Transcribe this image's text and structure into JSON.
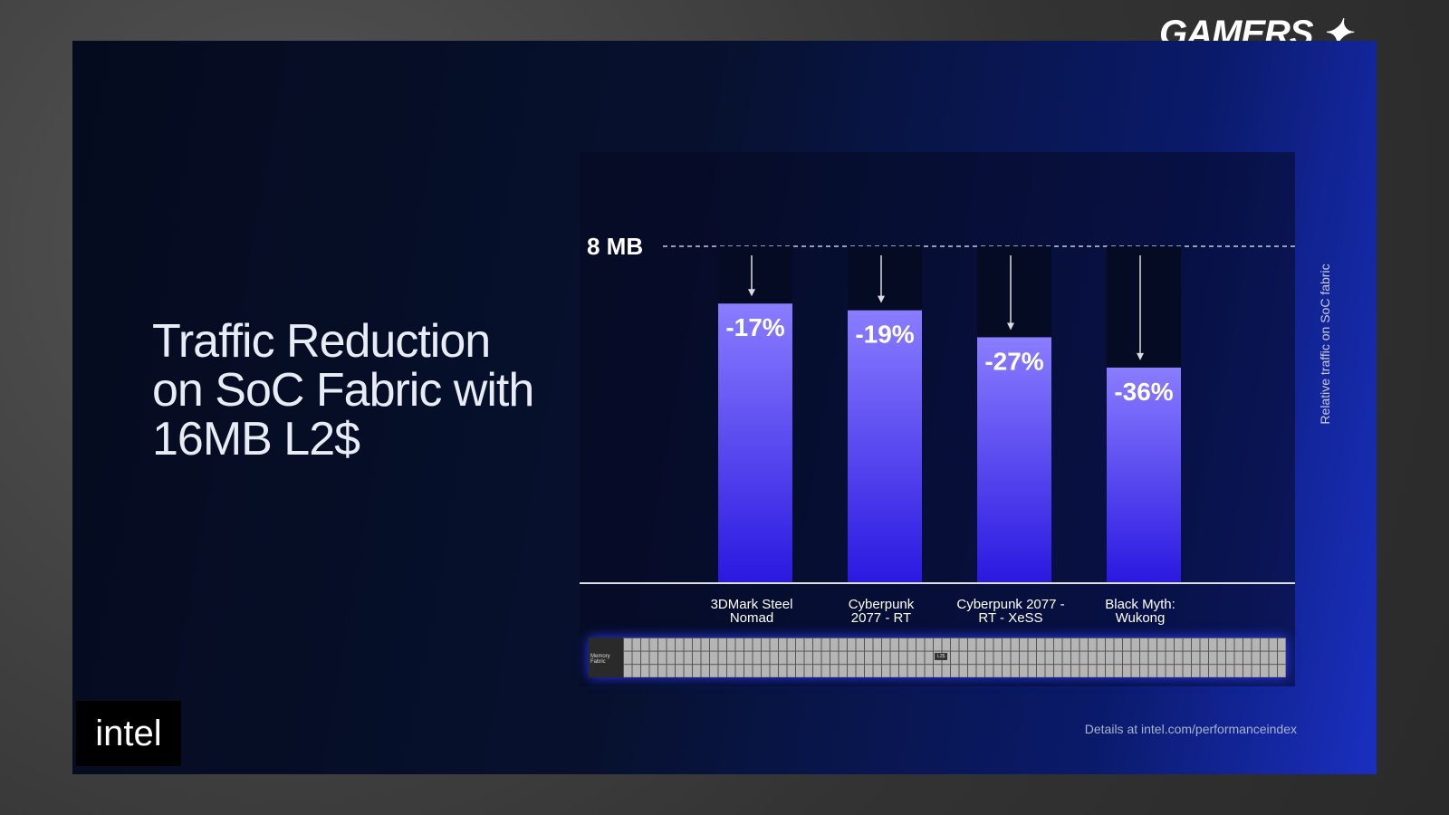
{
  "watermark": "GAMERS NEXUS",
  "title_lines": [
    "Traffic Reduction",
    "on SoC Fabric with",
    "16MB L2$"
  ],
  "logo": "intel",
  "details": "Details at intel.com/performanceindex",
  "fabric": {
    "label": "Memory Fabric",
    "l2_label": "L2$"
  },
  "chart_data": {
    "type": "bar",
    "ylabel": "Relative traffic on SoC fabric",
    "reference": {
      "label": "8 MB",
      "value": 100
    },
    "categories": [
      "3DMark Steel Nomad",
      "Cyberpunk 2077 - RT",
      "Cyberpunk 2077 - RT - XeSS",
      "Black Myth: Wukong"
    ],
    "category_lines": [
      [
        "3DMark Steel",
        "Nomad"
      ],
      [
        "Cyberpunk",
        "2077 - RT"
      ],
      [
        "Cyberpunk 2077 -",
        "RT - XeSS"
      ],
      [
        "Black Myth:",
        "Wukong"
      ]
    ],
    "values": [
      83,
      81,
      73,
      64
    ],
    "labels": [
      "-17%",
      "-19%",
      "-27%",
      "-36%"
    ],
    "ylim": [
      0,
      100
    ],
    "colors": {
      "bar_top": "#8a7dff",
      "bar_bottom": "#2a18e0"
    }
  }
}
